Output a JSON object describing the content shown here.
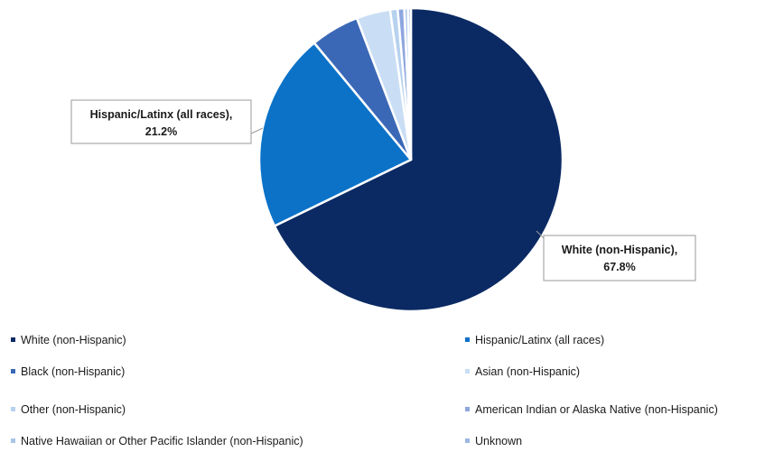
{
  "chart_data": {
    "type": "pie",
    "title": "",
    "slices": [
      {
        "name": "White (non-Hispanic)",
        "value": 67.8,
        "color": "#0b2a64"
      },
      {
        "name": "Hispanic/Latinx (all races)",
        "value": 21.2,
        "color": "#0b72c8"
      },
      {
        "name": "Black (non-Hispanic)",
        "value": 5.2,
        "color": "#3b68b6"
      },
      {
        "name": "Asian (non-Hispanic)",
        "value": 3.6,
        "color": "#c9def4"
      },
      {
        "name": "Other (non-Hispanic)",
        "value": 0.8,
        "color": "#b7d2ef"
      },
      {
        "name": "American Indian or Alaska Native (non-Hispanic)",
        "value": 0.7,
        "color": "#8ea6df"
      },
      {
        "name": "Native Hawaiian or Other Pacific Islander (non-Hispanic)",
        "value": 0.4,
        "color": "#a9c5e8"
      },
      {
        "name": "Unknown",
        "value": 0.3,
        "color": "#9cb7e2"
      }
    ],
    "data_labels": [
      {
        "slice": "Hispanic/Latinx (all races)",
        "line1": "Hispanic/Latinx (all races),",
        "line2": "21.2%"
      },
      {
        "slice": "White (non-Hispanic)",
        "line1": "White (non-Hispanic),",
        "line2": "67.8%"
      }
    ],
    "legend_position": "bottom"
  }
}
